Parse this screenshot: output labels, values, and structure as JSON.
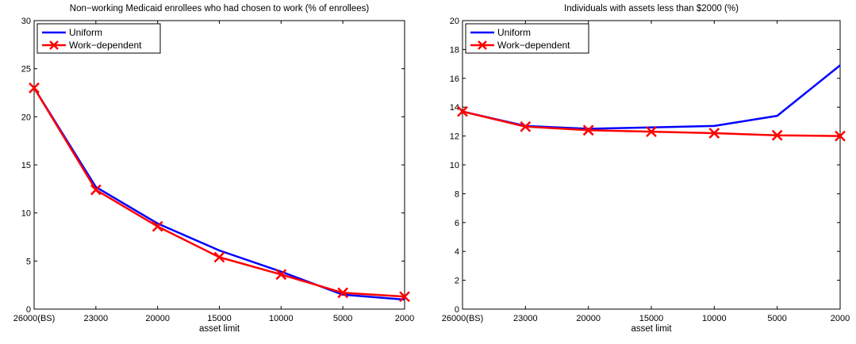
{
  "chart_data": [
    {
      "type": "line",
      "title": "Non−working Medicaid enrollees who had chosen to work (% of enrollees)",
      "xlabel": "asset limit",
      "ylabel": "",
      "categories": [
        "26000(BS)",
        "23000",
        "20000",
        "15000",
        "10000",
        "5000",
        "2000"
      ],
      "ylim": [
        0,
        30
      ],
      "yticks": [
        "0",
        "5",
        "10",
        "15",
        "20",
        "25",
        "30"
      ],
      "grid": false,
      "legend_position": "top-left",
      "series": [
        {
          "name": "Uniform",
          "color": "#0000ff",
          "marker": "none",
          "values": [
            23.0,
            12.7,
            8.9,
            6.1,
            3.9,
            1.5,
            1.0
          ]
        },
        {
          "name": "Work−dependent",
          "color": "#ff0000",
          "marker": "x",
          "values": [
            23.0,
            12.4,
            8.6,
            5.4,
            3.6,
            1.7,
            1.3
          ]
        }
      ]
    },
    {
      "type": "line",
      "title": "Individuals with assets less than $2000 (%)",
      "xlabel": "asset limit",
      "ylabel": "",
      "categories": [
        "26000(BS)",
        "23000",
        "20000",
        "15000",
        "10000",
        "5000",
        "2000"
      ],
      "ylim": [
        0,
        20
      ],
      "yticks": [
        "0",
        "2",
        "4",
        "6",
        "8",
        "10",
        "12",
        "14",
        "16",
        "18",
        "20"
      ],
      "grid": false,
      "legend_position": "top-left",
      "series": [
        {
          "name": "Uniform",
          "color": "#0000ff",
          "marker": "none",
          "values": [
            13.7,
            12.7,
            12.5,
            12.6,
            12.7,
            13.4,
            16.9
          ]
        },
        {
          "name": "Work−dependent",
          "color": "#ff0000",
          "marker": "x",
          "values": [
            13.7,
            12.65,
            12.4,
            12.3,
            12.2,
            12.05,
            12.0
          ]
        }
      ]
    }
  ]
}
